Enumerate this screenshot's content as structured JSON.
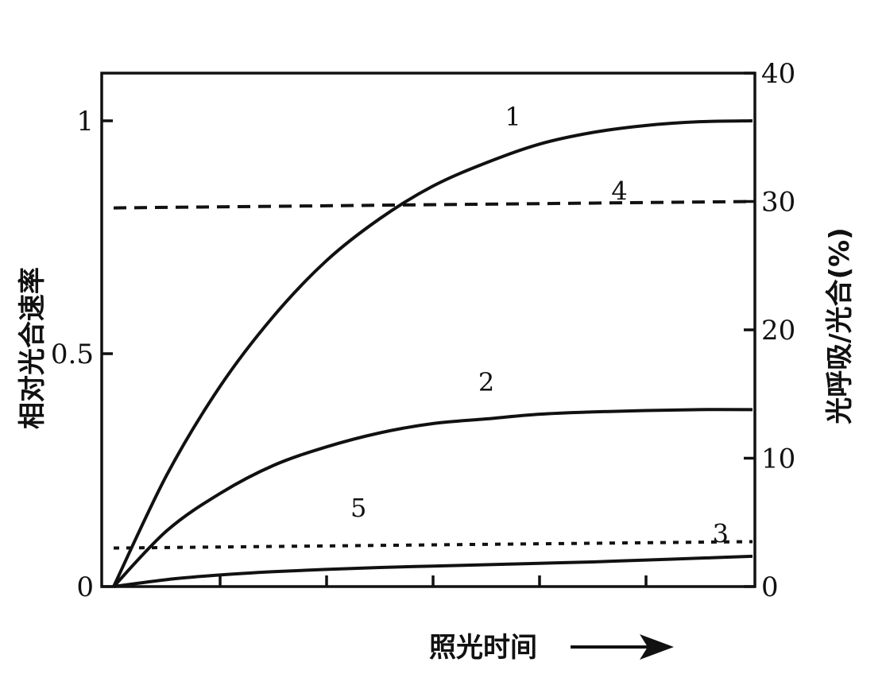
{
  "chart_data": {
    "type": "line",
    "title": "",
    "xlabel": "照光时间",
    "ylabel_left": "相对光合速率",
    "ylabel_right": "光呼吸/光合(%)",
    "grid": false,
    "xlim": [
      0,
      6
    ],
    "ylim_left": [
      0,
      1.1
    ],
    "ylim_right": [
      0,
      40
    ],
    "x_ticks": [
      1,
      2,
      3,
      4,
      5
    ],
    "left_ticks": [
      {
        "value": 0,
        "label": "0"
      },
      {
        "value": 0.5,
        "label": "0.5"
      },
      {
        "value": 1,
        "label": "1"
      }
    ],
    "right_ticks": [
      {
        "value": 0,
        "label": "0"
      },
      {
        "value": 10,
        "label": "10"
      },
      {
        "value": 20,
        "label": "20"
      },
      {
        "value": 30,
        "label": "30"
      },
      {
        "value": 40,
        "label": "40"
      }
    ],
    "series": [
      {
        "label": "1",
        "axis": "left",
        "style": "solid",
        "x": [
          0,
          0.5,
          1,
          1.5,
          2,
          2.5,
          3,
          3.5,
          4,
          4.5,
          5,
          5.5,
          6
        ],
        "y": [
          0,
          0.24,
          0.43,
          0.58,
          0.7,
          0.79,
          0.86,
          0.91,
          0.95,
          0.975,
          0.99,
          0.998,
          1.0
        ]
      },
      {
        "label": "2",
        "axis": "left",
        "style": "solid",
        "x": [
          0,
          0.5,
          1,
          1.5,
          2,
          2.5,
          3,
          3.5,
          4,
          4.5,
          5,
          5.5,
          6
        ],
        "y": [
          0,
          0.12,
          0.2,
          0.26,
          0.3,
          0.33,
          0.35,
          0.36,
          0.37,
          0.375,
          0.378,
          0.38,
          0.38
        ]
      },
      {
        "label": "3",
        "axis": "left",
        "style": "solid",
        "x": [
          0,
          0.5,
          1,
          1.5,
          2,
          2.5,
          3,
          3.5,
          4,
          4.5,
          5,
          5.5,
          6
        ],
        "y": [
          0,
          0.015,
          0.025,
          0.032,
          0.037,
          0.041,
          0.044,
          0.047,
          0.05,
          0.053,
          0.057,
          0.061,
          0.065
        ]
      },
      {
        "label": "4",
        "axis": "right",
        "style": "dashed",
        "x": [
          0,
          6
        ],
        "y": [
          29.5,
          30
        ]
      },
      {
        "label": "5",
        "axis": "right",
        "style": "dotted",
        "x": [
          0,
          6
        ],
        "y": [
          3,
          3.5
        ]
      }
    ],
    "curve_labels": [
      {
        "text": "1",
        "x": 3.75,
        "y_left": 0.99
      },
      {
        "text": "4",
        "x": 4.75,
        "y_left": 0.83
      },
      {
        "text": "2",
        "x": 3.5,
        "y_left": 0.42
      },
      {
        "text": "5",
        "x": 2.3,
        "y_left": 0.15
      },
      {
        "text": "3",
        "x": 5.7,
        "y_left": 0.095
      }
    ]
  }
}
